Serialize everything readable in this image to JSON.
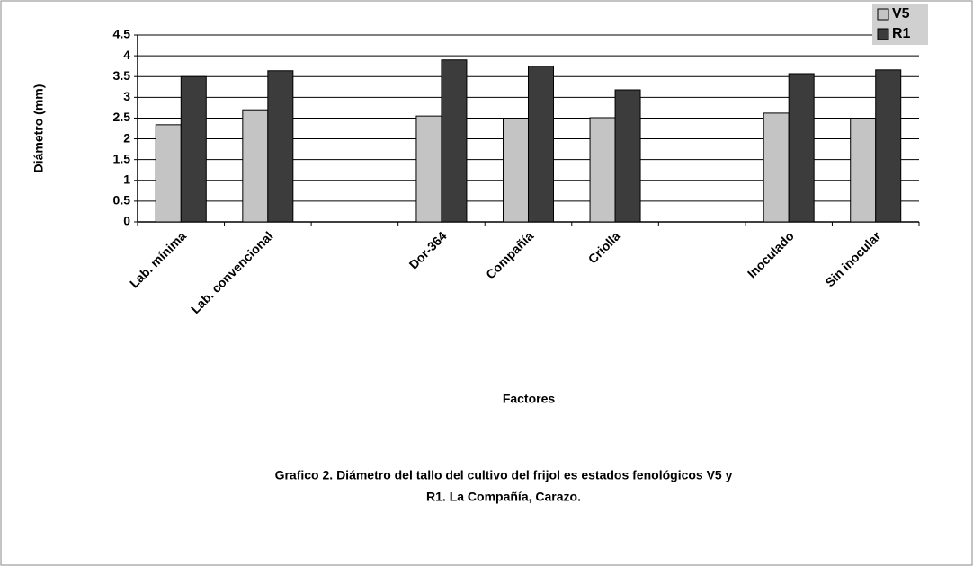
{
  "chart_data": {
    "type": "bar",
    "y_label": "Diámetro (mm)",
    "x_label": "Factores",
    "caption": [
      "Grafico 2. Diámetro del tallo del cultivo del frijol es estados fenológicos V5 y",
      "R1. La Compañía, Carazo."
    ],
    "categories": [
      "Lab. mínima",
      "Lab. convencional",
      null,
      "Dor-364",
      "Compañía",
      "Criolla",
      null,
      "Inoculado",
      "Sin inocular"
    ],
    "series": [
      {
        "name": "V5",
        "color": "#c4c4c4",
        "values": [
          2.34,
          2.7,
          null,
          2.55,
          2.49,
          2.51,
          null,
          2.62,
          2.49
        ]
      },
      {
        "name": "R1",
        "color": "#3c3c3c",
        "values": [
          3.5,
          3.64,
          null,
          3.9,
          3.75,
          3.18,
          null,
          3.57,
          3.66
        ]
      }
    ],
    "ylim": [
      0,
      4.5
    ],
    "yticks": [
      0,
      0.5,
      1,
      1.5,
      2,
      2.5,
      3,
      3.5,
      4,
      4.5
    ],
    "grid": true,
    "legend": "top-right"
  }
}
